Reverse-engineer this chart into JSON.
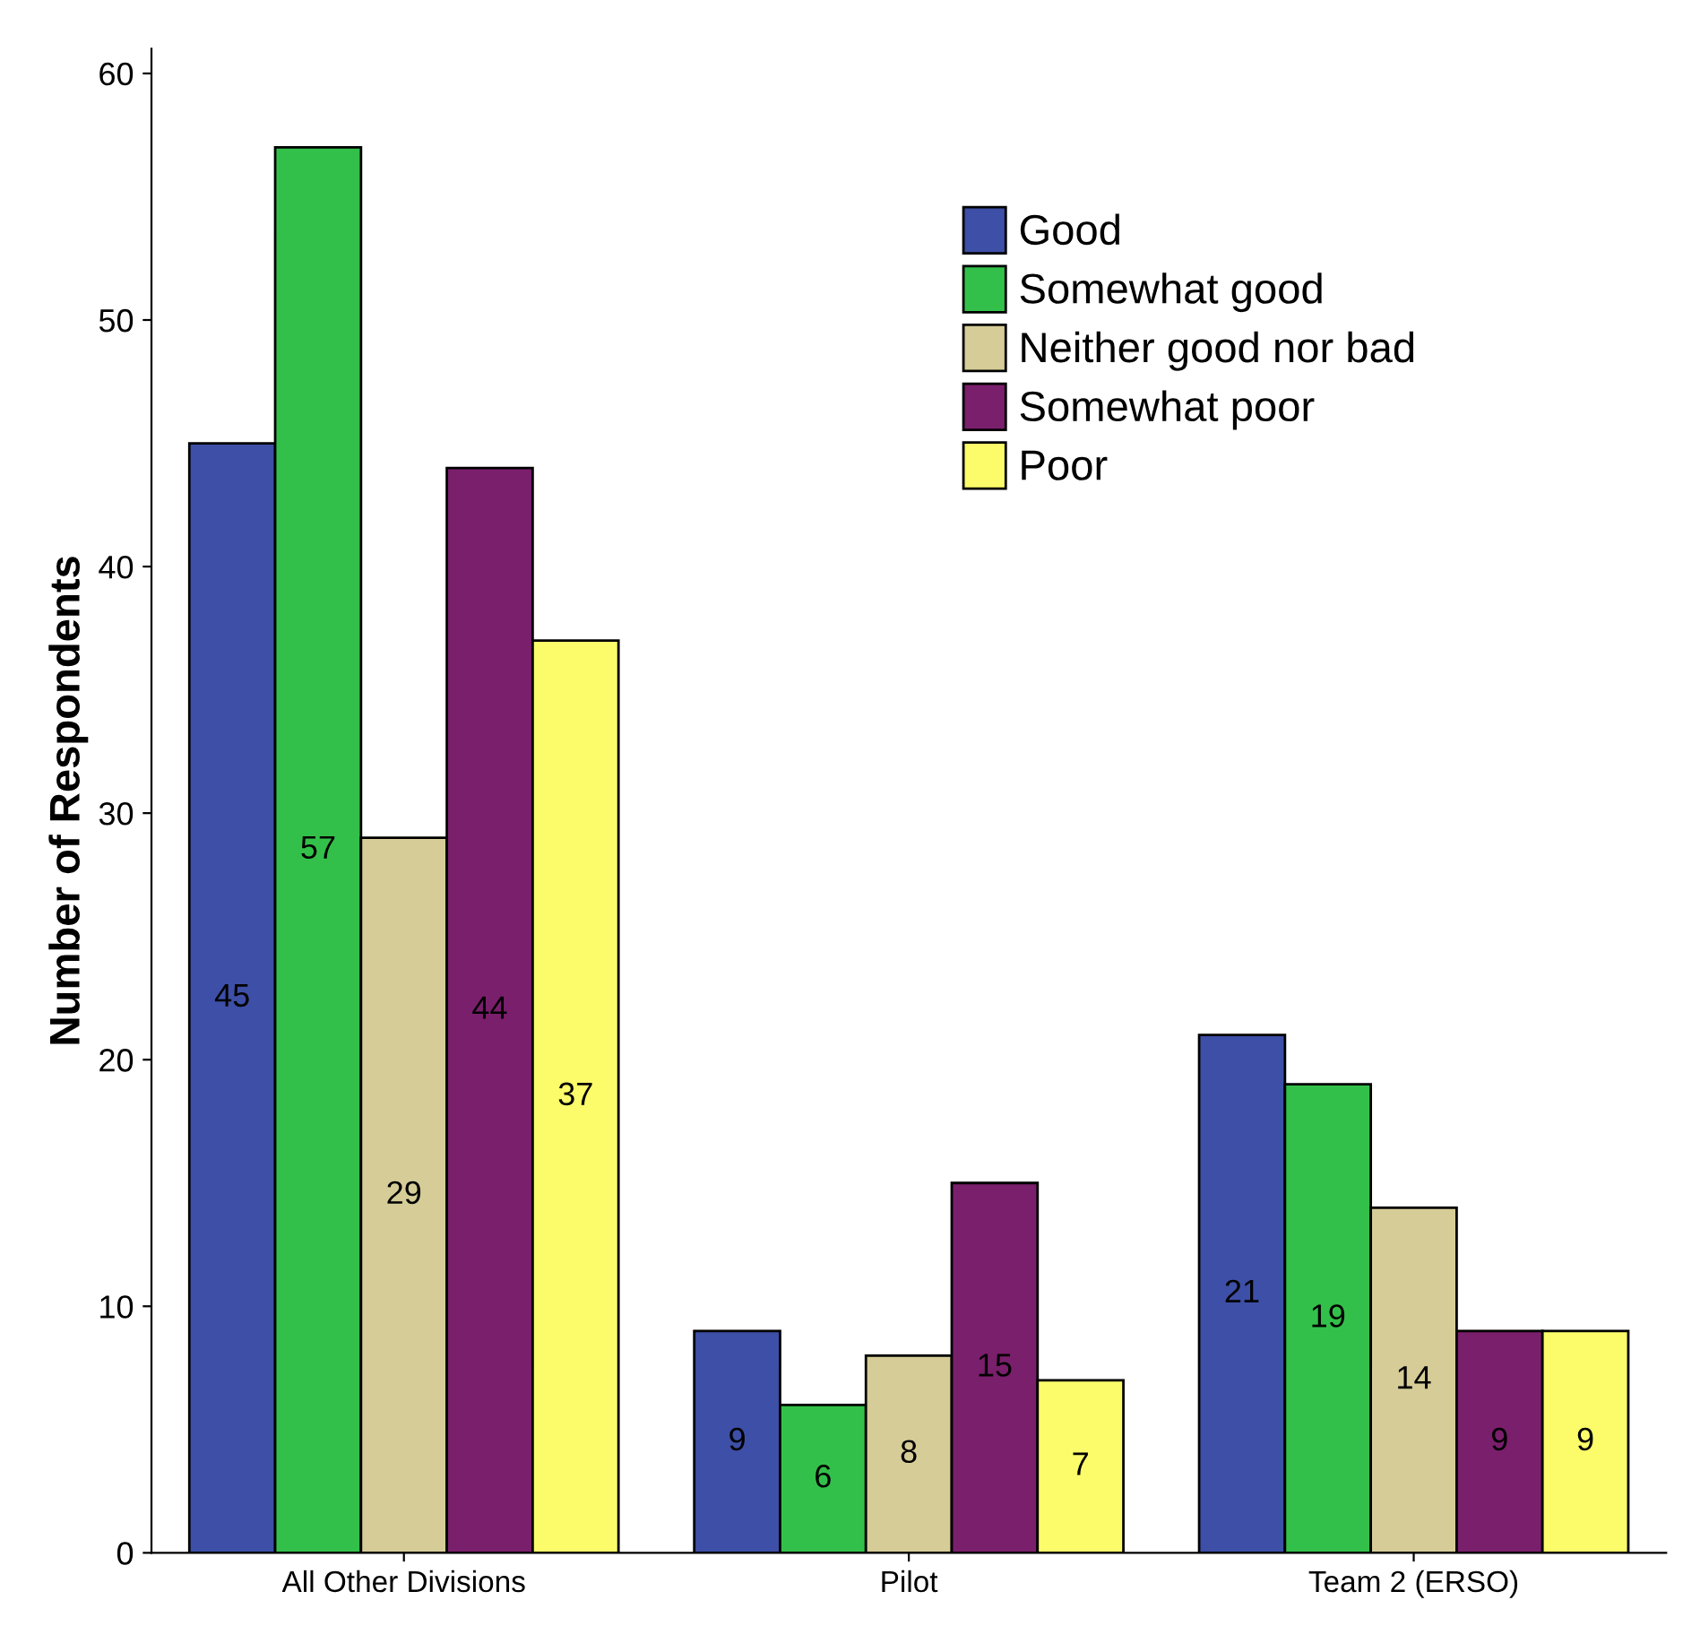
{
  "chart_data": {
    "type": "bar",
    "ylabel": "Number of Respondents",
    "categories": [
      "All Other Divisions",
      "Pilot",
      "Team 2 (ERSO)"
    ],
    "series": [
      {
        "name": "Good",
        "color": "#3d4fa6",
        "values": [
          45,
          9,
          21
        ]
      },
      {
        "name": "Somewhat good",
        "color": "#33c04a",
        "values": [
          57,
          6,
          19
        ]
      },
      {
        "name": "Neither good nor bad",
        "color": "#d5cc97",
        "values": [
          29,
          8,
          14
        ]
      },
      {
        "name": "Somewhat poor",
        "color": "#7a1f6c",
        "values": [
          44,
          15,
          9
        ]
      },
      {
        "name": "Poor",
        "color": "#fcfc6a",
        "values": [
          37,
          7,
          9
        ]
      }
    ],
    "ylim": [
      0,
      61
    ],
    "yticks": [
      0,
      10,
      20,
      30,
      40,
      50,
      60
    ],
    "data_labels": true,
    "legend": "top right",
    "grid": false
  }
}
